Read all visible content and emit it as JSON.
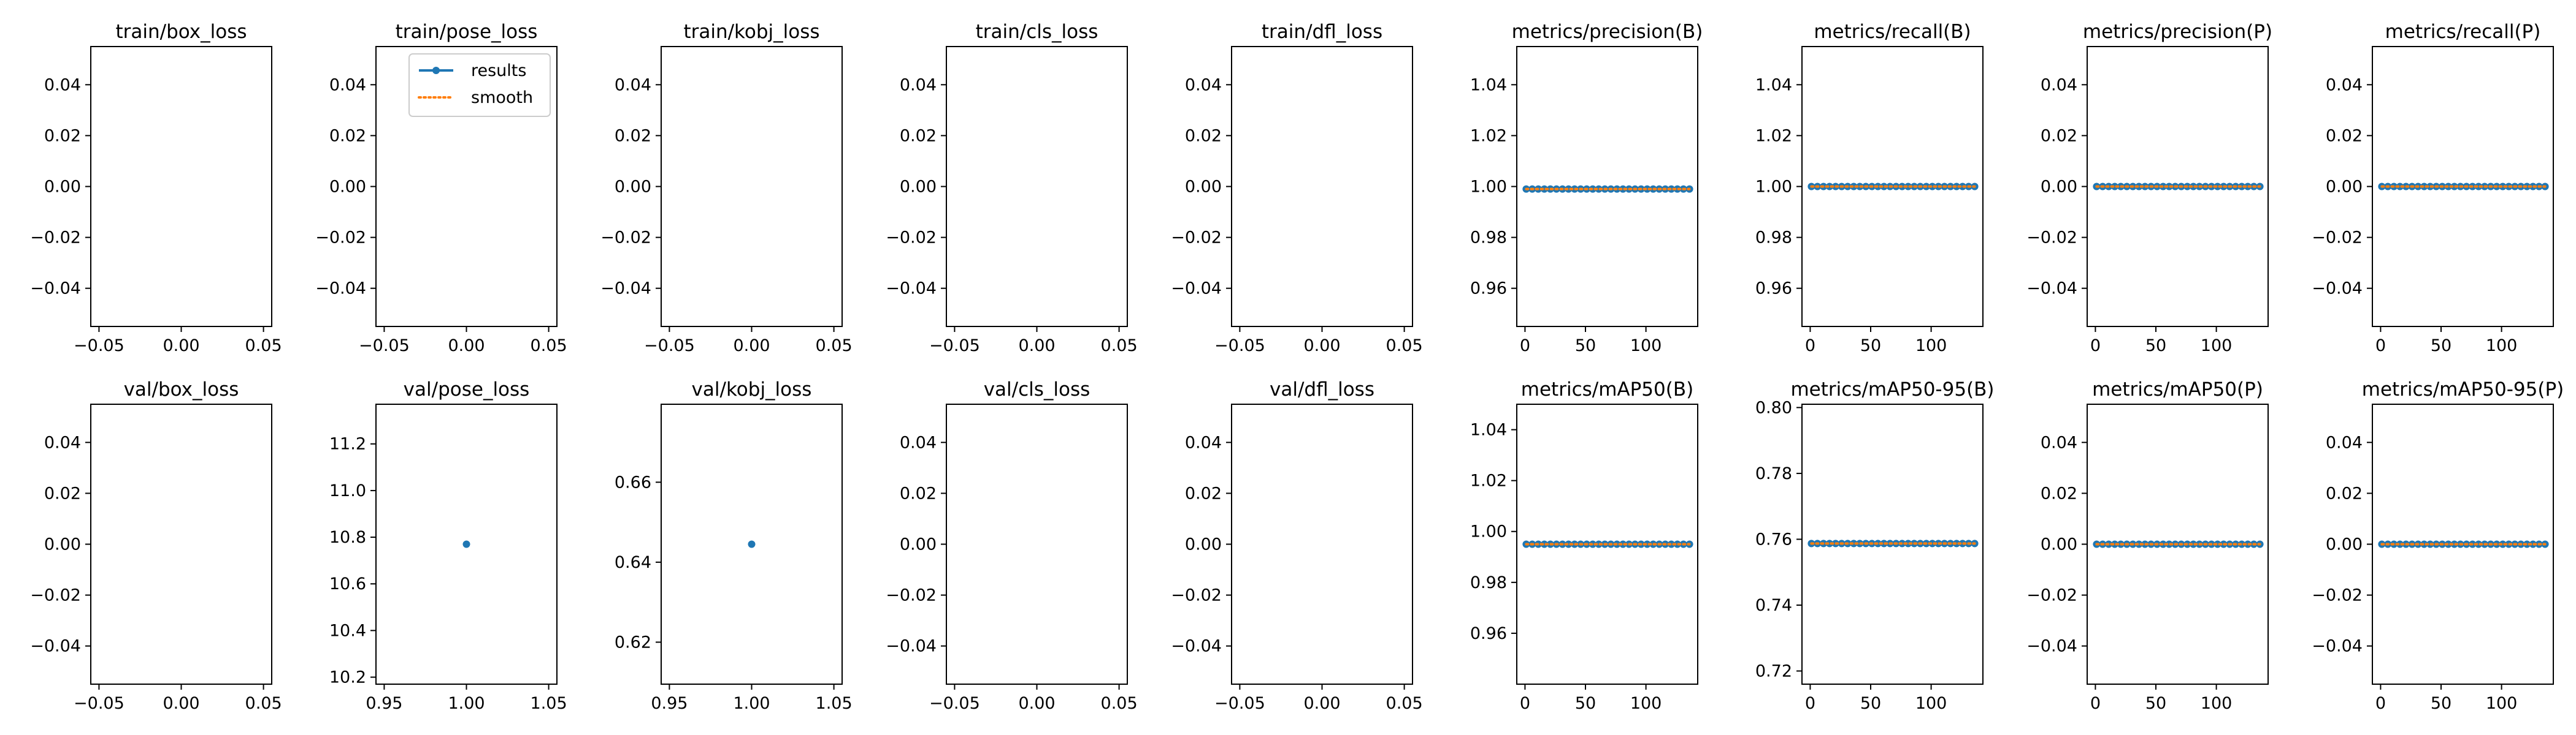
{
  "colors": {
    "results": "#1f77b4",
    "smooth": "#ff7f0e",
    "axis": "#000000"
  },
  "legend": {
    "items": [
      "results",
      "smooth"
    ],
    "placement": "upper-right",
    "panel": 1
  },
  "chart_data": [
    {
      "type": "line",
      "title": "train/box_loss",
      "xlim": [
        -0.055,
        0.055
      ],
      "ylim": [
        -0.055,
        0.055
      ],
      "xticks": [
        -0.05,
        0,
        0.05
      ],
      "xtick_labels": [
        "−0.05",
        "0.00",
        "0.05"
      ],
      "yticks": [
        -0.04,
        -0.02,
        0,
        0.02,
        0.04
      ],
      "ytick_labels": [
        "−0.04",
        "−0.02",
        "0.00",
        "0.02",
        "0.04"
      ],
      "series": []
    },
    {
      "type": "line",
      "title": "train/pose_loss",
      "xlim": [
        -0.055,
        0.055
      ],
      "ylim": [
        -0.055,
        0.055
      ],
      "xticks": [
        -0.05,
        0,
        0.05
      ],
      "xtick_labels": [
        "−0.05",
        "0.00",
        "0.05"
      ],
      "yticks": [
        -0.04,
        -0.02,
        0,
        0.02,
        0.04
      ],
      "ytick_labels": [
        "−0.04",
        "−0.02",
        "0.00",
        "0.02",
        "0.04"
      ],
      "series": []
    },
    {
      "type": "line",
      "title": "train/kobj_loss",
      "xlim": [
        -0.055,
        0.055
      ],
      "ylim": [
        -0.055,
        0.055
      ],
      "xticks": [
        -0.05,
        0,
        0.05
      ],
      "xtick_labels": [
        "−0.05",
        "0.00",
        "0.05"
      ],
      "yticks": [
        -0.04,
        -0.02,
        0,
        0.02,
        0.04
      ],
      "ytick_labels": [
        "−0.04",
        "−0.02",
        "0.00",
        "0.02",
        "0.04"
      ],
      "series": []
    },
    {
      "type": "line",
      "title": "train/cls_loss",
      "xlim": [
        -0.055,
        0.055
      ],
      "ylim": [
        -0.055,
        0.055
      ],
      "xticks": [
        -0.05,
        0,
        0.05
      ],
      "xtick_labels": [
        "−0.05",
        "0.00",
        "0.05"
      ],
      "yticks": [
        -0.04,
        -0.02,
        0,
        0.02,
        0.04
      ],
      "ytick_labels": [
        "−0.04",
        "−0.02",
        "0.00",
        "0.02",
        "0.04"
      ],
      "series": []
    },
    {
      "type": "line",
      "title": "train/dfl_loss",
      "xlim": [
        -0.055,
        0.055
      ],
      "ylim": [
        -0.055,
        0.055
      ],
      "xticks": [
        -0.05,
        0,
        0.05
      ],
      "xtick_labels": [
        "−0.05",
        "0.00",
        "0.05"
      ],
      "yticks": [
        -0.04,
        -0.02,
        0,
        0.02,
        0.04
      ],
      "ytick_labels": [
        "−0.04",
        "−0.02",
        "0.00",
        "0.02",
        "0.04"
      ],
      "series": []
    },
    {
      "type": "line",
      "title": "metrics/precision(B)",
      "xlim": [
        -6.8,
        142.8
      ],
      "ylim": [
        0.945,
        1.055
      ],
      "xticks": [
        0,
        50,
        100
      ],
      "xtick_labels": [
        "0",
        "50",
        "100"
      ],
      "yticks": [
        0.96,
        0.98,
        1.0,
        1.02,
        1.04
      ],
      "ytick_labels": [
        "0.96",
        "0.98",
        "1.00",
        "1.02",
        "1.04"
      ],
      "series": [
        {
          "start": 1,
          "end": 136,
          "step": 5,
          "value": 0.999,
          "smooth_value": 0.999
        }
      ]
    },
    {
      "type": "line",
      "title": "metrics/recall(B)",
      "xlim": [
        -6.8,
        142.8
      ],
      "ylim": [
        0.945,
        1.055
      ],
      "xticks": [
        0,
        50,
        100
      ],
      "xtick_labels": [
        "0",
        "50",
        "100"
      ],
      "yticks": [
        0.96,
        0.98,
        1.0,
        1.02,
        1.04
      ],
      "ytick_labels": [
        "0.96",
        "0.98",
        "1.00",
        "1.02",
        "1.04"
      ],
      "series": [
        {
          "start": 1,
          "end": 136,
          "step": 5,
          "value": 1.0,
          "smooth_value": 1.0
        }
      ]
    },
    {
      "type": "line",
      "title": "metrics/precision(P)",
      "xlim": [
        -6.8,
        142.8
      ],
      "ylim": [
        -0.055,
        0.055
      ],
      "xticks": [
        0,
        50,
        100
      ],
      "xtick_labels": [
        "0",
        "50",
        "100"
      ],
      "yticks": [
        -0.04,
        -0.02,
        0,
        0.02,
        0.04
      ],
      "ytick_labels": [
        "−0.04",
        "−0.02",
        "0.00",
        "0.02",
        "0.04"
      ],
      "series": [
        {
          "start": 1,
          "end": 136,
          "step": 5,
          "value": 0.0,
          "smooth_value": 0.0
        }
      ]
    },
    {
      "type": "line",
      "title": "metrics/recall(P)",
      "xlim": [
        -6.8,
        142.8
      ],
      "ylim": [
        -0.055,
        0.055
      ],
      "xticks": [
        0,
        50,
        100
      ],
      "xtick_labels": [
        "0",
        "50",
        "100"
      ],
      "yticks": [
        -0.04,
        -0.02,
        0,
        0.02,
        0.04
      ],
      "ytick_labels": [
        "−0.04",
        "−0.02",
        "0.00",
        "0.02",
        "0.04"
      ],
      "series": [
        {
          "start": 1,
          "end": 136,
          "step": 5,
          "value": 0.0,
          "smooth_value": 0.0
        }
      ]
    },
    {
      "type": "line",
      "title": "val/box_loss",
      "xlim": [
        -0.055,
        0.055
      ],
      "ylim": [
        -0.055,
        0.055
      ],
      "xticks": [
        -0.05,
        0,
        0.05
      ],
      "xtick_labels": [
        "−0.05",
        "0.00",
        "0.05"
      ],
      "yticks": [
        -0.04,
        -0.02,
        0,
        0.02,
        0.04
      ],
      "ytick_labels": [
        "−0.04",
        "−0.02",
        "0.00",
        "0.02",
        "0.04"
      ],
      "series": []
    },
    {
      "type": "line",
      "title": "val/pose_loss",
      "xlim": [
        0.945,
        1.055
      ],
      "ylim": [
        10.17,
        11.37
      ],
      "xticks": [
        0.95,
        1.0,
        1.05
      ],
      "xtick_labels": [
        "0.95",
        "1.00",
        "1.05"
      ],
      "yticks": [
        10.2,
        10.4,
        10.6,
        10.8,
        11.0,
        11.2
      ],
      "ytick_labels": [
        "10.2",
        "10.4",
        "10.6",
        "10.8",
        "11.0",
        "11.2"
      ],
      "series": [
        {
          "points": [
            [
              1.0,
              10.77
            ]
          ]
        }
      ]
    },
    {
      "type": "line",
      "title": "val/kobj_loss",
      "xlim": [
        0.945,
        1.055
      ],
      "ylim": [
        0.6095,
        0.6795
      ],
      "xticks": [
        0.95,
        1.0,
        1.05
      ],
      "xtick_labels": [
        "0.95",
        "1.00",
        "1.05"
      ],
      "yticks": [
        0.62,
        0.64,
        0.66
      ],
      "ytick_labels": [
        "0.62",
        "0.64",
        "0.66"
      ],
      "series": [
        {
          "points": [
            [
              1.0,
              0.6445
            ]
          ]
        }
      ]
    },
    {
      "type": "line",
      "title": "val/cls_loss",
      "xlim": [
        -0.055,
        0.055
      ],
      "ylim": [
        -0.055,
        0.055
      ],
      "xticks": [
        -0.05,
        0,
        0.05
      ],
      "xtick_labels": [
        "−0.05",
        "0.00",
        "0.05"
      ],
      "yticks": [
        -0.04,
        -0.02,
        0,
        0.02,
        0.04
      ],
      "ytick_labels": [
        "−0.04",
        "−0.02",
        "0.00",
        "0.02",
        "0.04"
      ],
      "series": []
    },
    {
      "type": "line",
      "title": "val/dfl_loss",
      "xlim": [
        -0.055,
        0.055
      ],
      "ylim": [
        -0.055,
        0.055
      ],
      "xticks": [
        -0.05,
        0,
        0.05
      ],
      "xtick_labels": [
        "−0.05",
        "0.00",
        "0.05"
      ],
      "yticks": [
        -0.04,
        -0.02,
        0,
        0.02,
        0.04
      ],
      "ytick_labels": [
        "−0.04",
        "−0.02",
        "0.00",
        "0.02",
        "0.04"
      ],
      "series": []
    },
    {
      "type": "line",
      "title": "metrics/mAP50(B)",
      "xlim": [
        -6.8,
        142.8
      ],
      "ylim": [
        0.94,
        1.05
      ],
      "xticks": [
        0,
        50,
        100
      ],
      "xtick_labels": [
        "0",
        "50",
        "100"
      ],
      "yticks": [
        0.96,
        0.98,
        1.0,
        1.02,
        1.04
      ],
      "ytick_labels": [
        "0.96",
        "0.98",
        "1.00",
        "1.02",
        "1.04"
      ],
      "series": [
        {
          "start": 1,
          "end": 136,
          "step": 5,
          "value": 0.995,
          "smooth_value": 0.995
        }
      ]
    },
    {
      "type": "line",
      "title": "metrics/mAP50-95(B)",
      "xlim": [
        -6.8,
        142.8
      ],
      "ylim": [
        0.716,
        0.801
      ],
      "xticks": [
        0,
        50,
        100
      ],
      "xtick_labels": [
        "0",
        "50",
        "100"
      ],
      "yticks": [
        0.72,
        0.74,
        0.76,
        0.78,
        0.8
      ],
      "ytick_labels": [
        "0.72",
        "0.74",
        "0.76",
        "0.78",
        "0.80"
      ],
      "series": [
        {
          "start": 1,
          "end": 136,
          "step": 5,
          "value": 0.7587,
          "smooth_value": 0.7587
        }
      ]
    },
    {
      "type": "line",
      "title": "metrics/mAP50(P)",
      "xlim": [
        -6.8,
        142.8
      ],
      "ylim": [
        -0.055,
        0.055
      ],
      "xticks": [
        0,
        50,
        100
      ],
      "xtick_labels": [
        "0",
        "50",
        "100"
      ],
      "yticks": [
        -0.04,
        -0.02,
        0,
        0.02,
        0.04
      ],
      "ytick_labels": [
        "−0.04",
        "−0.02",
        "0.00",
        "0.02",
        "0.04"
      ],
      "series": [
        {
          "start": 1,
          "end": 136,
          "step": 5,
          "value": 0.0,
          "smooth_value": 0.0
        }
      ]
    },
    {
      "type": "line",
      "title": "metrics/mAP50-95(P)",
      "xlim": [
        -6.8,
        142.8
      ],
      "ylim": [
        -0.055,
        0.055
      ],
      "xticks": [
        0,
        50,
        100
      ],
      "xtick_labels": [
        "0",
        "50",
        "100"
      ],
      "yticks": [
        -0.04,
        -0.02,
        0,
        0.02,
        0.04
      ],
      "ytick_labels": [
        "−0.04",
        "−0.02",
        "0.00",
        "0.02",
        "0.04"
      ],
      "series": [
        {
          "start": 1,
          "end": 136,
          "step": 5,
          "value": 0.0,
          "smooth_value": 0.0
        }
      ]
    }
  ]
}
